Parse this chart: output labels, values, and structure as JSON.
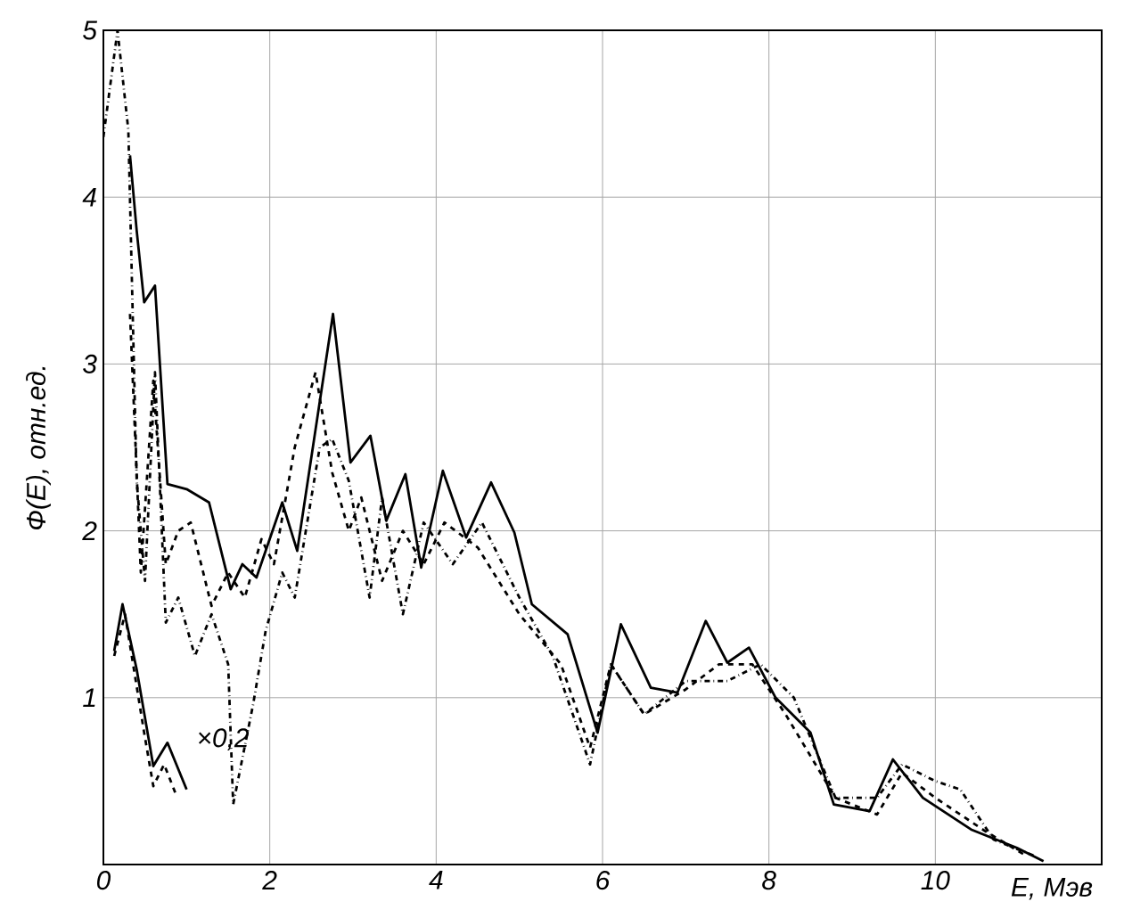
{
  "chart_data": {
    "type": "line",
    "xlabel": "E, Мэв",
    "ylabel": "Ф(Е), отн.ед.",
    "xlim": [
      0,
      12
    ],
    "ylim": [
      0,
      5
    ],
    "xticks": [
      0,
      2,
      4,
      6,
      8,
      10
    ],
    "yticks": [
      1,
      2,
      3,
      4,
      5
    ],
    "grid": true,
    "marker": "none",
    "annotations": [
      "×0,2"
    ],
    "series": [
      {
        "color": "#000000",
        "line_style": "solid",
        "x": [
          0.32,
          0.4,
          0.49,
          0.62,
          0.77,
          1.0,
          1.27,
          1.53,
          1.67,
          1.84,
          2.15,
          2.33,
          2.76,
          2.97,
          3.21,
          3.4,
          3.63,
          3.82,
          4.08,
          4.36,
          4.66,
          4.94,
          5.15,
          5.58,
          5.94,
          6.22,
          6.58,
          6.9,
          7.24,
          7.5,
          7.76,
          8.08,
          8.5,
          8.78,
          9.21,
          9.49,
          9.85,
          10.43,
          10.98,
          11.3
        ],
        "values": [
          4.25,
          3.8,
          3.37,
          3.47,
          2.28,
          2.25,
          2.17,
          1.65,
          1.8,
          1.72,
          2.17,
          1.88,
          3.3,
          2.41,
          2.57,
          2.06,
          2.34,
          1.78,
          2.36,
          1.96,
          2.29,
          1.99,
          1.56,
          1.38,
          0.79,
          1.44,
          1.06,
          1.03,
          1.46,
          1.21,
          1.3,
          1.0,
          0.79,
          0.36,
          0.32,
          0.63,
          0.4,
          0.21,
          0.1,
          0.02
        ]
      },
      {
        "color": "#000000",
        "line_style": "dashed",
        "x": [
          0.32,
          0.45,
          0.6,
          0.75,
          0.9,
          1.05,
          1.3,
          1.5,
          1.7,
          1.9,
          2.05,
          2.3,
          2.55,
          2.75,
          2.95,
          3.1,
          3.35,
          3.6,
          3.85,
          4.1,
          4.5,
          5.0,
          5.5,
          5.85,
          6.1,
          6.5,
          7.0,
          7.4,
          7.8,
          8.2,
          8.8,
          9.3,
          9.6,
          10.0,
          10.6,
          11.1
        ],
        "values": [
          3.3,
          1.75,
          2.9,
          1.8,
          2.0,
          2.05,
          1.55,
          1.75,
          1.6,
          1.95,
          1.8,
          2.5,
          2.95,
          2.35,
          2.0,
          2.2,
          1.7,
          2.0,
          1.8,
          2.05,
          1.9,
          1.5,
          1.2,
          0.7,
          1.2,
          0.9,
          1.05,
          1.2,
          1.2,
          0.9,
          0.4,
          0.3,
          0.55,
          0.4,
          0.2,
          0.05
        ]
      },
      {
        "color": "#000000",
        "line_style": "dashdot",
        "x": [
          0.0,
          0.17,
          0.3,
          0.4,
          0.5,
          0.62,
          0.75,
          0.9,
          1.1,
          1.3,
          1.5,
          1.56,
          1.8,
          1.95,
          2.15,
          2.3,
          2.6,
          2.75,
          2.95,
          3.2,
          3.35,
          3.6,
          3.85,
          4.2,
          4.55,
          5.0,
          5.4,
          5.85,
          6.1,
          6.5,
          7.0,
          7.5,
          7.9,
          8.3,
          8.8,
          9.3,
          9.6,
          10.0,
          10.3,
          10.7,
          11.2
        ],
        "values": [
          4.36,
          5.0,
          4.4,
          2.3,
          1.7,
          2.95,
          1.45,
          1.6,
          1.25,
          1.5,
          1.2,
          0.36,
          0.96,
          1.4,
          1.75,
          1.6,
          2.5,
          2.55,
          2.3,
          1.6,
          2.2,
          1.5,
          2.05,
          1.8,
          2.05,
          1.6,
          1.25,
          0.6,
          1.2,
          0.9,
          1.1,
          1.1,
          1.2,
          1.0,
          0.4,
          0.4,
          0.6,
          0.5,
          0.45,
          0.15,
          0.05
        ]
      },
      {
        "color": "#000000",
        "line_style": "solid",
        "x": [
          0.13,
          0.23,
          0.4,
          0.6,
          0.77,
          1.0
        ],
        "values": [
          1.28,
          1.56,
          1.17,
          0.59,
          0.73,
          0.45
        ]
      },
      {
        "color": "#000000",
        "line_style": "dashed",
        "x": [
          0.13,
          0.26,
          0.49,
          0.6,
          0.73,
          0.88
        ],
        "values": [
          1.25,
          1.5,
          0.79,
          0.47,
          0.6,
          0.41
        ]
      }
    ]
  }
}
